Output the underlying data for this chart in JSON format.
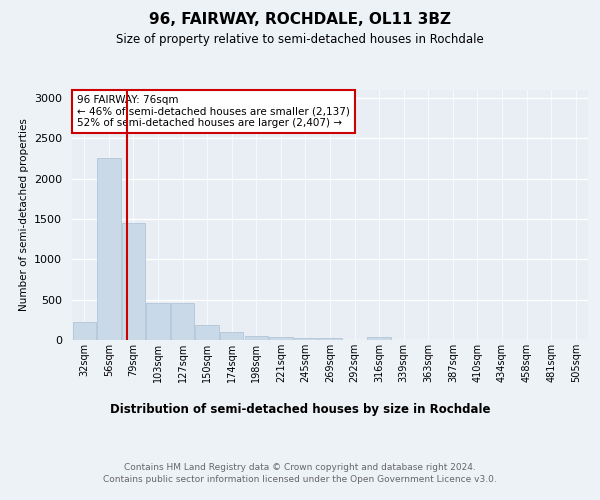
{
  "title1": "96, FAIRWAY, ROCHDALE, OL11 3BZ",
  "title2": "Size of property relative to semi-detached houses in Rochdale",
  "xlabel": "Distribution of semi-detached houses by size in Rochdale",
  "ylabel": "Number of semi-detached properties",
  "categories": [
    "32sqm",
    "56sqm",
    "79sqm",
    "103sqm",
    "127sqm",
    "150sqm",
    "174sqm",
    "198sqm",
    "221sqm",
    "245sqm",
    "269sqm",
    "292sqm",
    "316sqm",
    "339sqm",
    "363sqm",
    "387sqm",
    "410sqm",
    "434sqm",
    "458sqm",
    "481sqm",
    "505sqm"
  ],
  "values": [
    220,
    2260,
    1450,
    460,
    460,
    185,
    100,
    55,
    35,
    25,
    30,
    0,
    40,
    0,
    0,
    0,
    0,
    0,
    0,
    0,
    0
  ],
  "bar_color": "#c9d9e8",
  "bar_edgecolor": "#aac0d4",
  "vline_x": 1.75,
  "vline_color": "#cc0000",
  "annotation_text": "96 FAIRWAY: 76sqm\n← 46% of semi-detached houses are smaller (2,137)\n52% of semi-detached houses are larger (2,407) →",
  "annotation_box_edgecolor": "#cc0000",
  "ylim": [
    0,
    3100
  ],
  "yticks": [
    0,
    500,
    1000,
    1500,
    2000,
    2500,
    3000
  ],
  "footer1": "Contains HM Land Registry data © Crown copyright and database right 2024.",
  "footer2": "Contains public sector information licensed under the Open Government Licence v3.0.",
  "background_color": "#edf2f7",
  "plot_background": "#e8eef4"
}
